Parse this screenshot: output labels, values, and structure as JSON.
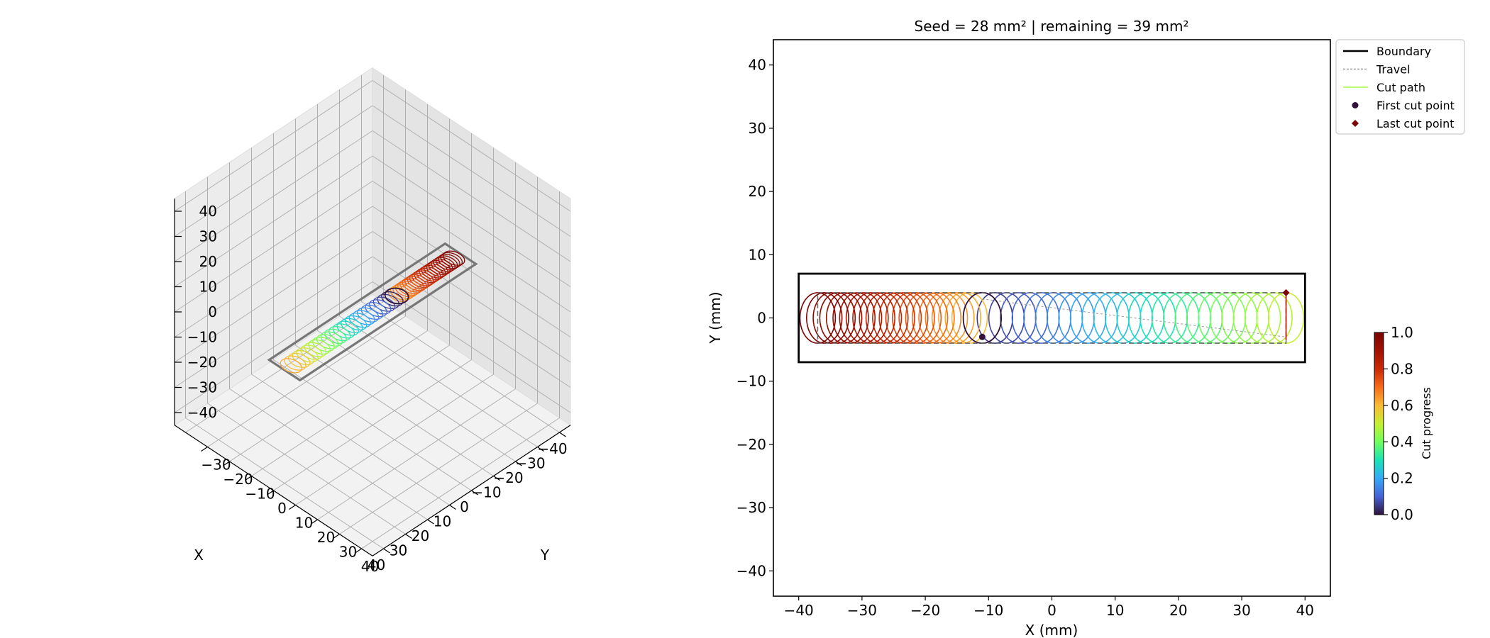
{
  "chart_data": [
    {
      "type": "line3d",
      "xlabel": "X",
      "ylabel": "Y",
      "x_ticks": [
        -40,
        -30,
        -20,
        -10,
        0,
        10,
        20,
        30,
        40
      ],
      "y_ticks": [
        -30,
        -20,
        -10,
        0,
        10,
        20,
        30,
        40
      ],
      "z_ticks": [
        -40,
        -30,
        -20,
        -10,
        0,
        10,
        20,
        30,
        40
      ],
      "xlim": [
        -45,
        45
      ],
      "ylim": [
        -45,
        45
      ],
      "zlim": [
        -45,
        45
      ],
      "grid": true,
      "boundary": {
        "x": [
          -40,
          40
        ],
        "y": [
          -7,
          7
        ],
        "z": 0
      }
    },
    {
      "type": "line",
      "title": "Seed = 28 mm²  |  remaining = 39 mm²",
      "xlabel": "X (mm)",
      "ylabel": "Y (mm)",
      "xlim": [
        -44,
        44
      ],
      "ylim": [
        -44,
        44
      ],
      "x_ticks": [
        -40,
        -30,
        -20,
        -10,
        0,
        10,
        20,
        30,
        40
      ],
      "y_ticks": [
        -40,
        -30,
        -20,
        -10,
        0,
        10,
        20,
        30,
        40
      ],
      "boundary": {
        "x": [
          -40,
          40
        ],
        "y": [
          -7,
          7
        ],
        "color": "#000000"
      },
      "inner_region": {
        "x": [
          -37,
          37
        ],
        "y": [
          -4,
          4
        ],
        "color": "#666666"
      },
      "seed_circle": {
        "center": [
          -11,
          0
        ],
        "radius": 4
      },
      "spiral": {
        "x_start": -11,
        "x_end": 37,
        "radius": 4,
        "loops": 26,
        "color_from": 0.0,
        "color_to": 0.5
      },
      "spiral_left": {
        "x_start": -37,
        "x_end": -11,
        "radius": 4,
        "loops": 24,
        "color_from": 1.0,
        "color_to": 0.6
      },
      "first_cut_point": {
        "x": -11,
        "y": -3,
        "color": "#30123b"
      },
      "last_cut_point": {
        "x": 37,
        "y": 4,
        "color": "#7a0403"
      },
      "legend": {
        "placement": "outside-top-right",
        "entries": [
          {
            "label": "Boundary",
            "kind": "line",
            "color": "#000000"
          },
          {
            "label": "Travel",
            "kind": "dashed",
            "color": "#999999"
          },
          {
            "label": "Cut path",
            "kind": "line",
            "color": "#a4fc3c"
          },
          {
            "label": "First cut point",
            "kind": "dot",
            "color": "#30123b"
          },
          {
            "label": "Last cut point",
            "kind": "diamond",
            "color": "#7a0403"
          }
        ]
      },
      "colorbar": {
        "label": "Cut progress",
        "range": [
          0,
          1
        ],
        "ticks": [
          "0.0",
          "0.2",
          "0.4",
          "0.6",
          "0.8",
          "1.0"
        ],
        "colormap": "turbo"
      }
    }
  ]
}
